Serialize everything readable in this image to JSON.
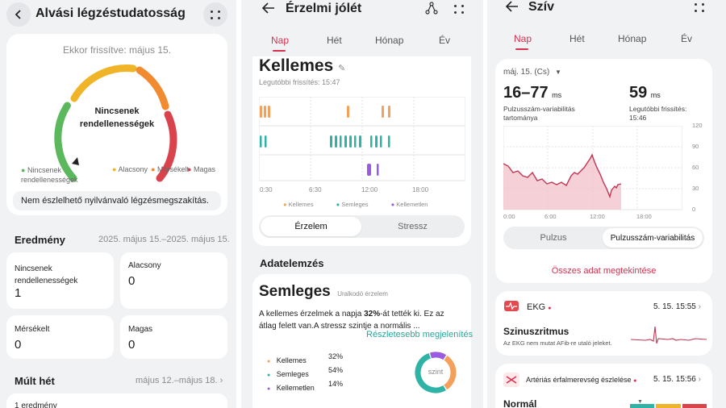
{
  "p1": {
    "title": "Alvási légzéstudatosság",
    "updated": "Ekkor frissítve: május 15.",
    "gauge_center_line1": "Nincsenek",
    "gauge_center_line2": "rendellenességek",
    "legend": [
      "Nincsenek rendellenességek",
      "Alacsony",
      "Mérsékelt",
      "Magas"
    ],
    "legend_colors": [
      "#5cb85c",
      "#f0b429",
      "#f28b30",
      "#d9434b"
    ],
    "notice": "Nem észlelhető nyilvánvaló légzésmegszakítás.",
    "result_title": "Eredmény",
    "result_range": "2025. május 15.–2025. május 15.",
    "tiles": [
      {
        "label": "Nincsenek rendellenességek",
        "value": "1"
      },
      {
        "label": "Alacsony",
        "value": "0"
      },
      {
        "label": "Mérsékelt",
        "value": "0"
      },
      {
        "label": "Magas",
        "value": "0"
      }
    ],
    "last_week_title": "Múlt hét",
    "last_week_range": "május 12.–május 18.",
    "last_week_item": "1 eredmény"
  },
  "p2": {
    "title": "Érzelmi jólét",
    "tabs": [
      "Nap",
      "Hét",
      "Hónap",
      "Év"
    ],
    "mood": "Kellemes",
    "last_update": "Legutóbbi frissítés: 15:47",
    "time_axis": [
      "0:30",
      "6:30",
      "12:00",
      "18:00"
    ],
    "chart_legend": [
      "Kellemes",
      "Semleges",
      "Kellemetlen"
    ],
    "colors": {
      "pleasant": "#f3a05a",
      "neutral": "#2fb3a6",
      "unpleasant": "#9a5be0"
    },
    "seg": [
      "Érzelem",
      "Stressz"
    ],
    "analysis_title": "Adatelemzés",
    "analysis_mood": "Semleges",
    "analysis_sub": "Uralkodó érzelem",
    "analysis_text_pre": "A kellemes érzelmek a napja ",
    "analysis_text_pct": "32%",
    "analysis_text_post": "-át tették ki. Ez az átlag felett van.A stressz szintje a normális ...",
    "more_link": "Részletesebb megjelenítés",
    "breakdown": [
      {
        "name": "Kellemes",
        "value": "32%"
      },
      {
        "name": "Semleges",
        "value": "54%"
      },
      {
        "name": "Kellemetlen",
        "value": "14%"
      }
    ],
    "donut_label": "szint",
    "chart_data": {
      "type": "pie",
      "categories": [
        "Kellemes",
        "Semleges",
        "Kellemetlen"
      ],
      "values": [
        32,
        54,
        14
      ]
    }
  },
  "p3": {
    "title": "Szív",
    "tabs": [
      "Nap",
      "Hét",
      "Hónap",
      "Év"
    ],
    "date": "máj. 15. (Cs)",
    "hrv_range": "16–77",
    "hrv_unit": "ms",
    "hrv_label": "Pulzusszám-variabilitás tartománya",
    "hrv_latest": "59",
    "hrv_latest_unit": "ms",
    "hrv_latest_label": "Legutóbbi frissítés: 15:46",
    "y_ticks": [
      "120",
      "90",
      "60",
      "30",
      "0"
    ],
    "x_ticks": [
      "0:00",
      "6:00",
      "12:00",
      "18:00"
    ],
    "seg": [
      "Pulzus",
      "Pulzusszám-variabilitás"
    ],
    "all_data": "Összes adat megtekintése",
    "ekg_title": "EKG",
    "ekg_date": "5. 15. 15:55",
    "ekg_result": "Szinuszritmus",
    "ekg_desc": "Az EKG nem mutat AFib-re utaló jeleket.",
    "stiff_title": "Artériás érfalmerevség észlelése",
    "stiff_date": "5. 15. 15:56",
    "stiff_result": "Normál",
    "accent": "#d8304f"
  }
}
